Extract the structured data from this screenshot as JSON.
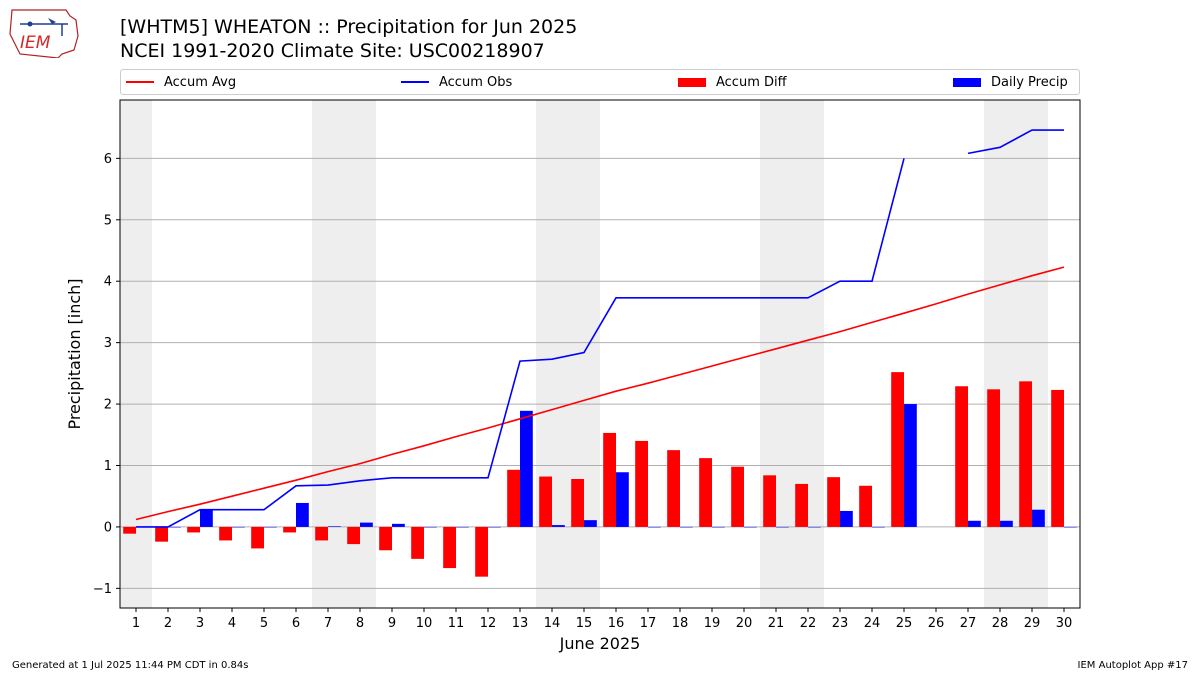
{
  "header": {
    "title": "[WHTM5] WHEATON :: Precipitation for Jun 2025",
    "subtitle": "NCEI 1991-2020 Climate Site: USC00218907",
    "logo_text": "IEM"
  },
  "footer": {
    "generated": "Generated at 1 Jul 2025 11:44 PM CDT in 0.84s",
    "app": "IEM Autoplot App #17"
  },
  "colors": {
    "accum_avg": "#ff0000",
    "accum_obs": "#0000ff",
    "accum_diff": "#ff0000",
    "daily_precip": "#0000ff",
    "weekend_shade": "#eeeeee",
    "grid": "#b0b0b0"
  },
  "chart_data": {
    "type": "bar",
    "xlabel": "June 2025",
    "ylabel": "Precipitation [inch]",
    "ylim": [
      -1.32,
      6.95
    ],
    "yticks": [
      -1,
      0,
      1,
      2,
      3,
      4,
      5,
      6
    ],
    "grid": "horizontal",
    "legend_placement": "top",
    "legend": [
      "Accum Avg",
      "Accum Obs",
      "Accum Diff",
      "Daily Precip"
    ],
    "x": [
      1,
      2,
      3,
      4,
      5,
      6,
      7,
      8,
      9,
      10,
      11,
      12,
      13,
      14,
      15,
      16,
      17,
      18,
      19,
      20,
      21,
      22,
      23,
      24,
      25,
      26,
      27,
      28,
      29,
      30
    ],
    "weekend_days": [
      1,
      7,
      8,
      14,
      15,
      21,
      22,
      28,
      29
    ],
    "series": [
      {
        "name": "Accum Avg",
        "type": "line",
        "values": [
          0.12,
          0.25,
          0.37,
          0.5,
          0.63,
          0.76,
          0.9,
          1.03,
          1.18,
          1.32,
          1.47,
          1.61,
          1.76,
          1.91,
          2.06,
          2.21,
          2.34,
          2.48,
          2.62,
          2.76,
          2.9,
          3.04,
          3.18,
          3.33,
          3.48,
          3.63,
          3.79,
          3.94,
          4.09,
          4.23
        ]
      },
      {
        "name": "Accum Obs",
        "type": "line",
        "values": [
          0.0,
          0.0,
          0.28,
          0.28,
          0.28,
          0.67,
          0.68,
          0.75,
          0.8,
          0.8,
          0.8,
          0.8,
          2.7,
          2.73,
          2.84,
          3.73,
          3.73,
          3.73,
          3.73,
          3.73,
          3.73,
          3.73,
          4.0,
          4.0,
          6.0,
          null,
          6.08,
          6.18,
          6.46,
          6.46
        ]
      },
      {
        "name": "Accum Diff",
        "type": "bar",
        "values": [
          -0.11,
          -0.24,
          -0.09,
          -0.22,
          -0.35,
          -0.09,
          -0.22,
          -0.28,
          -0.38,
          -0.52,
          -0.67,
          -0.81,
          0.93,
          0.82,
          0.78,
          1.53,
          1.4,
          1.25,
          1.12,
          0.98,
          0.84,
          0.7,
          0.81,
          0.67,
          2.52,
          null,
          2.29,
          2.24,
          2.37,
          2.23
        ]
      },
      {
        "name": "Daily Precip",
        "type": "bar",
        "values": [
          0.0,
          0.0,
          0.28,
          0.0,
          0.0,
          0.39,
          0.01,
          0.07,
          0.05,
          0.0,
          0.0,
          0.0,
          1.89,
          0.03,
          0.11,
          0.89,
          0.0,
          0.0,
          0.0,
          0.0,
          0.0,
          0.0,
          0.26,
          0.0,
          2.0,
          null,
          0.1,
          0.1,
          0.28,
          0.0
        ]
      }
    ]
  }
}
